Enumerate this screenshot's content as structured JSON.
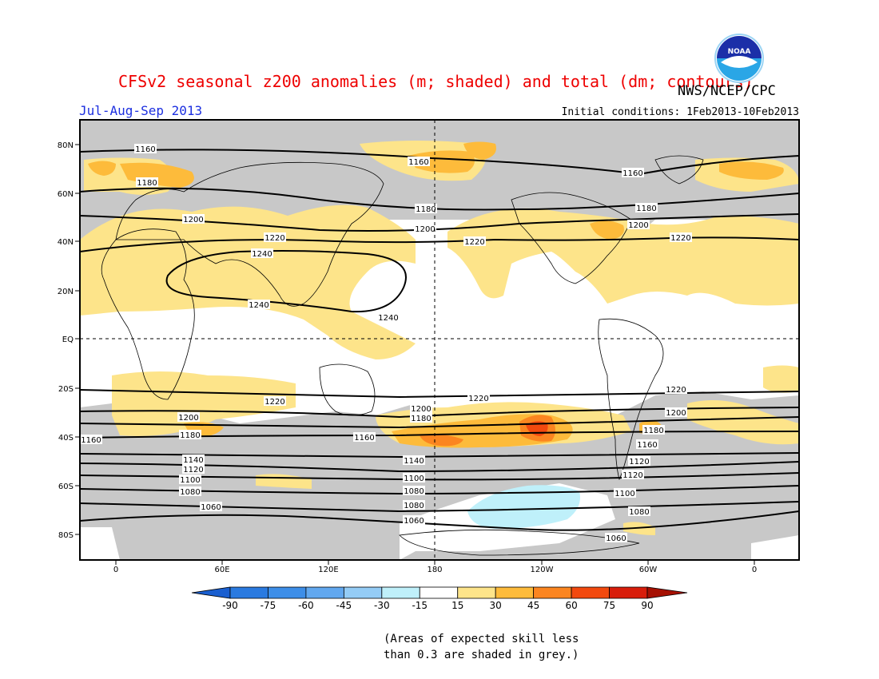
{
  "header": {
    "title": "CFSv2 seasonal z200 anomalies (m; shaded) and total (dm; contours)",
    "agency": "NWS/NCEP/CPC",
    "season": "Jul-Aug-Sep 2013",
    "initial_conditions": "Initial conditions: 1Feb2013-10Feb2013",
    "logo_text": "NOAA"
  },
  "axes": {
    "lat_labels": [
      "80N",
      "60N",
      "40N",
      "20N",
      "EQ",
      "20S",
      "40S",
      "60S",
      "80S"
    ],
    "lon_labels": [
      "0",
      "60E",
      "120E",
      "180",
      "120W",
      "60W",
      "0"
    ]
  },
  "colorbar": {
    "ticks": [
      "-90",
      "-75",
      "-60",
      "-45",
      "-30",
      "-15",
      "15",
      "30",
      "45",
      "60",
      "75",
      "90"
    ],
    "colors": [
      "#1a5fd0",
      "#2a7ae0",
      "#3d8ee8",
      "#62a8ef",
      "#94ccf6",
      "#bff0fa",
      "#ffffff",
      "#fde48a",
      "#fdbb3b",
      "#fb8520",
      "#f2490e",
      "#d81d0b",
      "#a51002"
    ]
  },
  "contour_labels": {
    "north": [
      "1160",
      "1160",
      "1160",
      "1180",
      "1180",
      "1180",
      "1200",
      "1200",
      "1200",
      "1220",
      "1220",
      "1220",
      "1240",
      "1240",
      "1240"
    ],
    "south": [
      "1220",
      "1220",
      "1220",
      "1200",
      "1200",
      "1200",
      "1180",
      "1180",
      "1180",
      "1160",
      "1160",
      "1160",
      "1140",
      "1140",
      "1120",
      "1120",
      "1120",
      "1100",
      "1100",
      "1100",
      "1080",
      "1080",
      "1080",
      "1060",
      "1060",
      "1060"
    ]
  },
  "colors": {
    "skill_grey": "#c8c8c8",
    "title_red": "#ee0000",
    "season_blue": "#1c2fe0"
  },
  "footnote": {
    "line1": "(Areas of expected skill less",
    "line2": "than 0.3 are shaded in grey.)"
  }
}
